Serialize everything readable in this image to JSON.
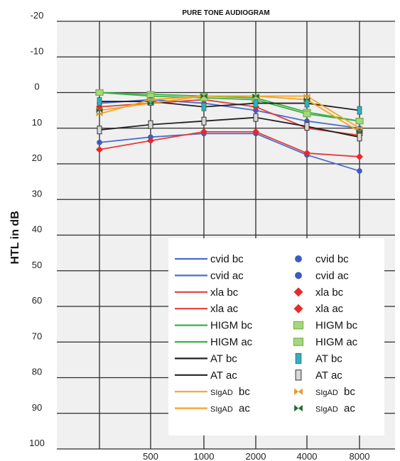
{
  "chart_data": {
    "type": "line",
    "title": "PURE TONE AUDIOGRAM",
    "xlabel": "",
    "ylabel": "HTL in dB",
    "x": [
      250,
      500,
      1000,
      2000,
      4000,
      8000
    ],
    "x_tick_labels": [
      "500",
      "1000",
      "2000",
      "4000",
      "8000"
    ],
    "y_tick_labels": [
      "-20",
      "-10",
      "0",
      "10",
      "20",
      "30",
      "40",
      "50",
      "60",
      "70",
      "80",
      "90",
      "100"
    ],
    "ylim": [
      -20,
      100
    ],
    "y_inverted": true,
    "grid": true,
    "legend_placement": "lower-right",
    "series": [
      {
        "name": "cvid bc",
        "color": "#4a6fc7",
        "marker": "circle",
        "marker_color": "#3b5bc4",
        "values": [
          3,
          2,
          3,
          5,
          8,
          10
        ]
      },
      {
        "name": "cvid ac",
        "color": "#4a6fc7",
        "marker": "circle",
        "marker_color": "#3b5bc4",
        "values": [
          14,
          12.5,
          11.5,
          11.5,
          17.5,
          22
        ]
      },
      {
        "name": "xla bc",
        "color": "#e63b3b",
        "marker": "diamond",
        "marker_color": "#e62a2a",
        "values": [
          4,
          3,
          2,
          4,
          10,
          12
        ]
      },
      {
        "name": "xla ac",
        "color": "#e63b3b",
        "marker": "diamond",
        "marker_color": "#e62a2a",
        "values": [
          16,
          13.5,
          11,
          11,
          17,
          18
        ]
      },
      {
        "name": "HIGM bc",
        "color": "#3cb043",
        "marker": "square",
        "marker_color": "#a6d77a",
        "values": [
          0,
          0.5,
          1,
          1.5,
          5.5,
          8
        ]
      },
      {
        "name": "HIGM ac",
        "color": "#3cb043",
        "marker": "square",
        "marker_color": "#a6d77a",
        "values": [
          0,
          1,
          1.5,
          2,
          6,
          8
        ]
      },
      {
        "name": "AT bc",
        "color": "#222222",
        "marker": "bar-teal",
        "marker_color": "#2ab3c0",
        "values": [
          2.5,
          2.5,
          4,
          3,
          3,
          5
        ]
      },
      {
        "name": "AT ac",
        "color": "#222222",
        "marker": "bar-grey",
        "marker_color": "#d8d8d8",
        "values": [
          10.5,
          9,
          8,
          7,
          9.5,
          12.5
        ]
      },
      {
        "name": "SIgAD bc",
        "color": "#f5a623",
        "marker": "bowtie-orange",
        "marker_color": "#e8982b",
        "values": [
          6,
          2,
          1,
          1,
          1,
          10
        ]
      },
      {
        "name": "SIgAD ac",
        "color": "#f5a623",
        "marker": "bowtie-green",
        "marker_color": "#1e6b2e",
        "values": [
          5,
          3,
          1,
          1,
          2,
          11
        ]
      }
    ],
    "legend": {
      "lines": [
        "cvid bc",
        "cvid ac",
        "xla bc",
        "xla ac",
        "HIGM bc",
        "HIGM ac",
        "AT bc",
        "AT ac",
        "SIgAD",
        "SIgAD"
      ],
      "line_suffix": [
        "",
        "",
        "",
        "",
        "",
        "",
        "",
        "",
        "bc",
        "ac"
      ],
      "markers": [
        "cvid bc",
        "cvid ac",
        "xla bc",
        "xla ac",
        "HIGM bc",
        "HIGM ac",
        "AT bc",
        "AT ac",
        "SIgAD",
        "SIgAD"
      ],
      "marker_suffix": [
        "",
        "",
        "",
        "",
        "",
        "",
        "",
        "",
        "bc",
        "ac"
      ]
    }
  }
}
